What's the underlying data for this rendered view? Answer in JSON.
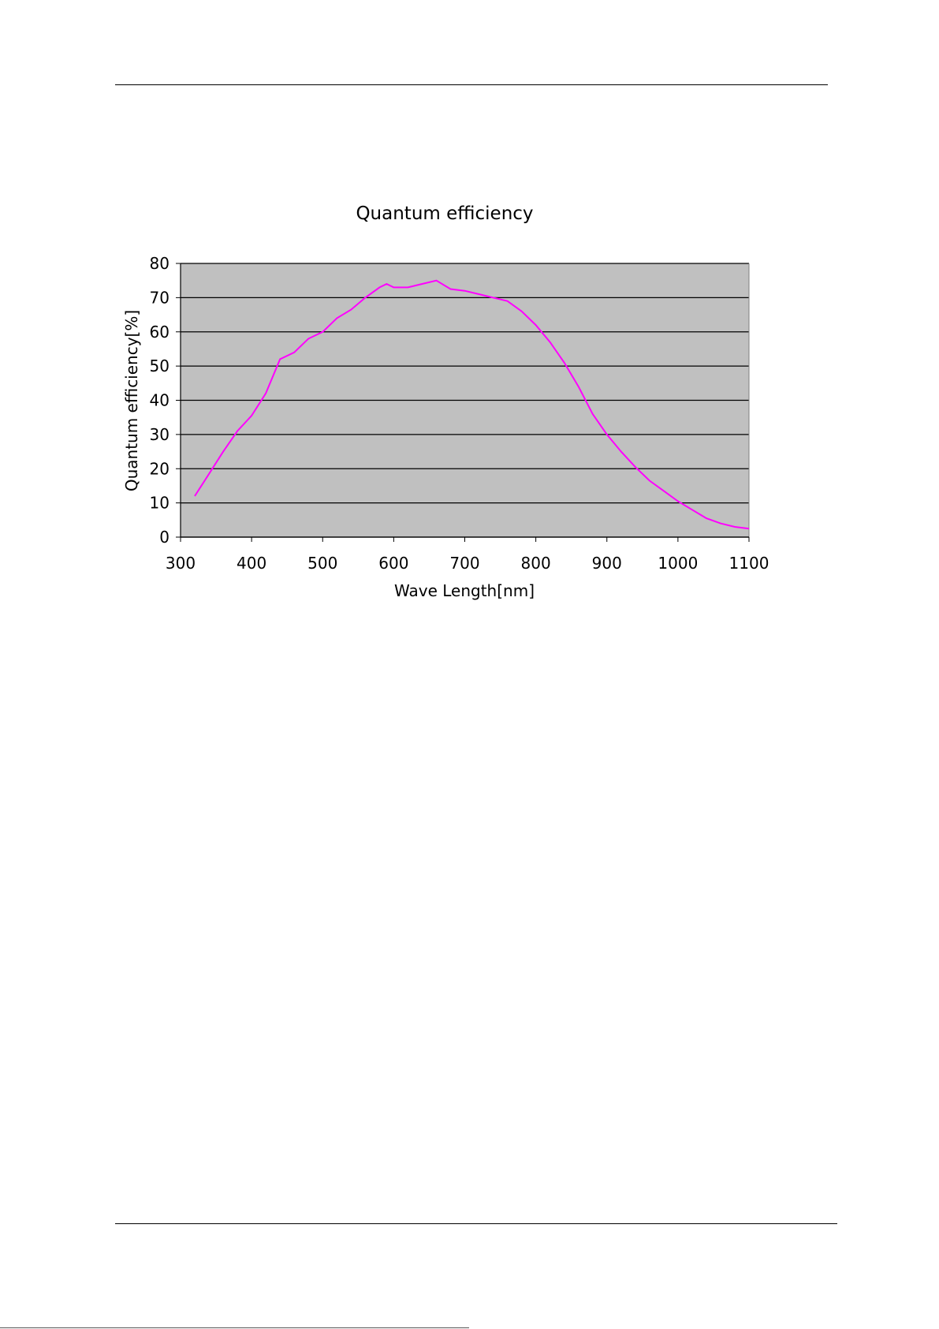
{
  "chart_data": {
    "type": "line",
    "title": "Quantum efficiency",
    "xlabel": "Wave Length[nm]",
    "ylabel": "Quantum efficiency[%]",
    "xlim": [
      300,
      1100
    ],
    "ylim": [
      0,
      80
    ],
    "x_ticks": [
      300,
      400,
      500,
      600,
      700,
      800,
      900,
      1000,
      1100
    ],
    "y_ticks": [
      0,
      10,
      20,
      30,
      40,
      50,
      60,
      70,
      80
    ],
    "grid": "horizontal",
    "legend": "none",
    "colors": {
      "plot_background": "#c0c0c0",
      "line": "#ff00ff",
      "grid": "#000000"
    },
    "series": [
      {
        "x": [
          320,
          340,
          360,
          380,
          400,
          420,
          440,
          460,
          480,
          500,
          520,
          540,
          560,
          580,
          590,
          600,
          620,
          640,
          660,
          680,
          700,
          720,
          740,
          760,
          780,
          800,
          820,
          840,
          860,
          880,
          900,
          920,
          940,
          960,
          980,
          1000,
          1020,
          1040,
          1060,
          1080,
          1100
        ],
        "y": [
          12,
          18.5,
          25,
          31,
          35.5,
          42,
          52,
          54,
          58,
          60,
          64,
          66.5,
          70,
          73,
          74,
          73,
          73,
          74,
          75,
          72.5,
          72,
          71,
          70,
          69,
          66,
          62,
          57,
          51,
          44,
          36,
          30,
          25,
          20.5,
          16.5,
          13.5,
          10.5,
          8,
          5.5,
          4,
          3,
          2.5
        ]
      }
    ]
  }
}
